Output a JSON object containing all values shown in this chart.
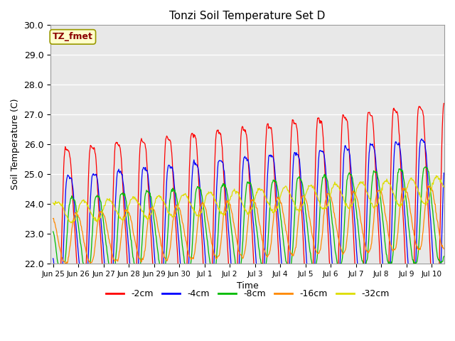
{
  "title": "Tonzi Soil Temperature Set D",
  "xlabel": "Time",
  "ylabel": "Soil Temperature (C)",
  "ylim": [
    22.0,
    30.0
  ],
  "annotation_text": "TZ_fmet",
  "annotation_bg": "#ffffcc",
  "annotation_text_color": "#8b0000",
  "plot_bg": "#e8e8e8",
  "fig_bg": "#ffffff",
  "series": [
    {
      "label": "-2cm",
      "color": "#ff0000"
    },
    {
      "label": "-4cm",
      "color": "#0000ff"
    },
    {
      "label": "-8cm",
      "color": "#00bb00"
    },
    {
      "label": "-16cm",
      "color": "#ff8800"
    },
    {
      "label": "-32cm",
      "color": "#dddd00"
    }
  ],
  "tick_labels": [
    "Jun 25",
    "Jun 26",
    "Jun 27",
    "Jun 28",
    "Jun 29",
    "Jun 30",
    "Jul 1",
    "Jul 2",
    "Jul 3",
    "Jul 4",
    "Jul 5",
    "Jul 6",
    "Jul 7",
    "Jul 8",
    "Jul 9",
    "Jul 10"
  ],
  "yticks": [
    22.0,
    23.0,
    24.0,
    25.0,
    26.0,
    27.0,
    28.0,
    29.0,
    30.0
  ]
}
